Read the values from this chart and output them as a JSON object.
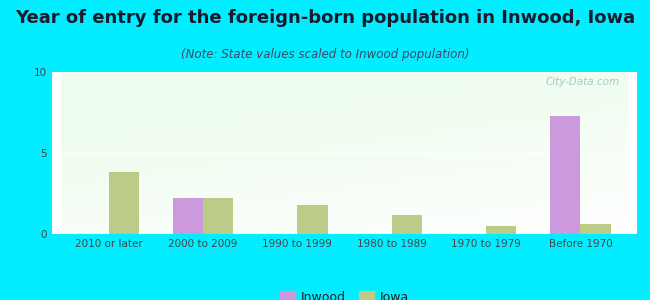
{
  "title": "Year of entry for the foreign-born population in Inwood, Iowa",
  "subtitle": "(Note: State values scaled to Inwood population)",
  "categories": [
    "2010 or later",
    "2000 to 2009",
    "1990 to 1999",
    "1980 to 1989",
    "1970 to 1979",
    "Before 1970"
  ],
  "inwood_values": [
    0,
    2.2,
    0,
    0,
    0,
    7.3
  ],
  "iowa_values": [
    3.8,
    2.2,
    1.8,
    1.2,
    0.5,
    0.6
  ],
  "inwood_color": "#cc99dd",
  "iowa_color": "#bbcc88",
  "background_color": "#00eeff",
  "plot_bg_color": "#e8f5e0",
  "ylim": [
    0,
    10
  ],
  "yticks": [
    0,
    5,
    10
  ],
  "bar_width": 0.32,
  "legend_labels": [
    "Inwood",
    "Iowa"
  ],
  "title_fontsize": 13,
  "subtitle_fontsize": 8.5,
  "tick_fontsize": 7.5,
  "legend_fontsize": 9,
  "watermark": "City-Data.com"
}
